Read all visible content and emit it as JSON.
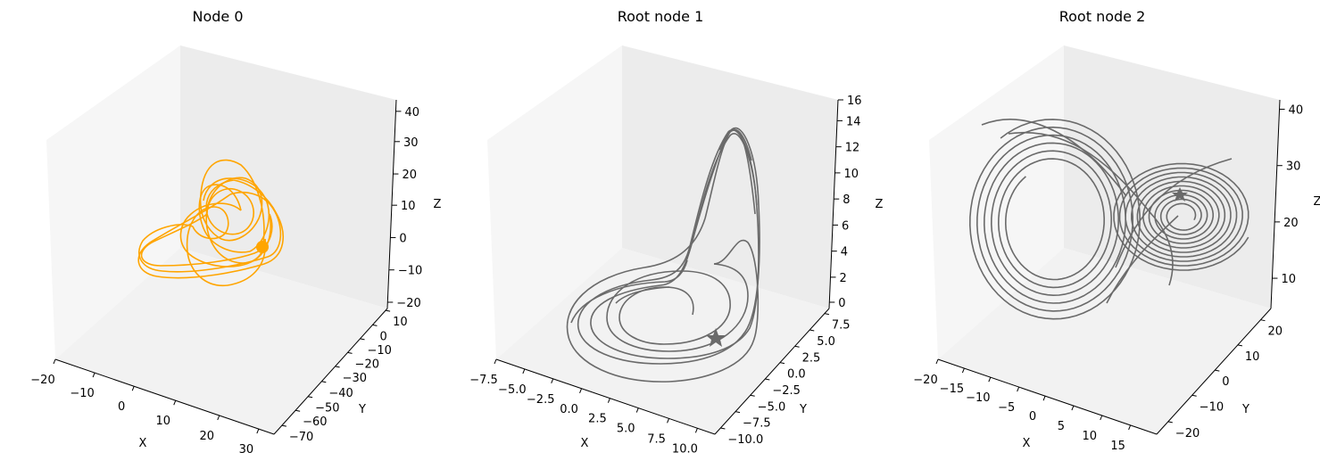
{
  "chart_data": [
    {
      "type": "line3d",
      "title": "Node 0",
      "xlabel": "X",
      "ylabel": "Y",
      "zlabel": "Z",
      "xticks": [
        "−20",
        "−10",
        "0",
        "10",
        "20",
        "30"
      ],
      "yticks": [
        "−70",
        "−60",
        "−50",
        "−40",
        "−30",
        "−20",
        "−10",
        "0",
        "10"
      ],
      "zticks": [
        "−20",
        "−10",
        "0",
        "10",
        "20",
        "30",
        "40"
      ],
      "xlim": [
        -20,
        32
      ],
      "ylim": [
        -72,
        14
      ],
      "zlim": [
        -22,
        44
      ],
      "series_color": "#ffa500",
      "marker": "circle",
      "grid": false
    },
    {
      "type": "line3d",
      "title": "Root node 1",
      "xlabel": "X",
      "ylabel": "Y",
      "zlabel": "Z",
      "xticks": [
        "−7.5",
        "−5.0",
        "−2.5",
        "0.0",
        "2.5",
        "5.0",
        "7.5",
        "10.0"
      ],
      "yticks": [
        "−10.0",
        "−7.5",
        "−5.0",
        "−2.5",
        "0.0",
        "2.5",
        "5.0",
        "7.5"
      ],
      "zticks": [
        "0",
        "2",
        "4",
        "6",
        "8",
        "10",
        "12",
        "14",
        "16"
      ],
      "xlim": [
        -9,
        11
      ],
      "ylim": [
        -11,
        9
      ],
      "zlim": [
        -1,
        16
      ],
      "series_color": "#696969",
      "marker": "star",
      "grid": false
    },
    {
      "type": "line3d",
      "title": "Root node 2",
      "xlabel": "X",
      "ylabel": "Y",
      "zlabel": "Z",
      "xticks": [
        "−20",
        "−15",
        "−10",
        "−5",
        "0",
        "5",
        "10",
        "15"
      ],
      "yticks": [
        "−20",
        "−10",
        "0",
        "10",
        "20"
      ],
      "zticks": [
        "10",
        "20",
        "30",
        "40"
      ],
      "xlim": [
        -21,
        18
      ],
      "ylim": [
        -25,
        28
      ],
      "zlim": [
        2,
        49
      ],
      "series_color": "#696969",
      "marker": "star",
      "grid": false
    }
  ]
}
